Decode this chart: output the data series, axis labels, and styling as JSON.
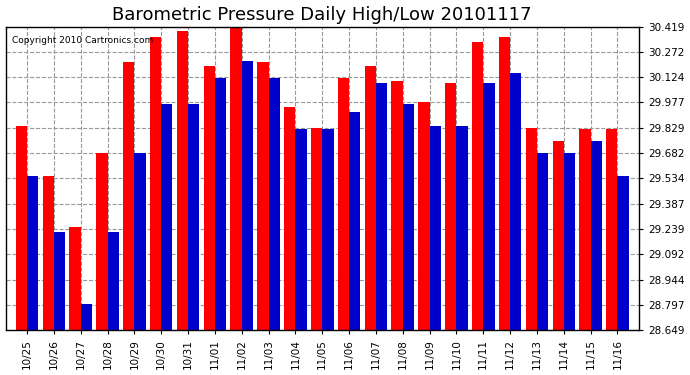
{
  "title": "Barometric Pressure Daily High/Low 20101117",
  "copyright": "Copyright 2010 Cartronics.com",
  "x_labels": [
    "10/25",
    "10/26",
    "10/27",
    "10/28",
    "10/29",
    "10/30",
    "10/31",
    "11/01",
    "11/02",
    "11/03",
    "11/04",
    "11/05",
    "11/06",
    "11/07",
    "11/08",
    "11/09",
    "11/10",
    "11/11",
    "11/12",
    "11/13",
    "11/14",
    "11/15",
    "11/16"
  ],
  "highs": [
    29.84,
    29.55,
    29.25,
    29.68,
    30.21,
    30.36,
    30.39,
    30.19,
    30.43,
    30.21,
    29.95,
    29.83,
    30.12,
    30.19,
    30.1,
    29.98,
    30.09,
    30.33,
    30.36,
    29.83,
    29.75,
    29.82,
    29.82
  ],
  "lows": [
    29.55,
    29.22,
    28.8,
    29.22,
    29.68,
    29.97,
    29.97,
    30.12,
    30.22,
    30.12,
    29.82,
    29.82,
    29.92,
    30.09,
    29.97,
    29.84,
    29.84,
    30.09,
    30.15,
    29.68,
    29.68,
    29.75,
    29.55
  ],
  "high_color": "#ff0000",
  "low_color": "#0000cc",
  "bg_color": "#ffffff",
  "grid_color": "#999999",
  "y_ticks": [
    28.649,
    28.797,
    28.944,
    29.092,
    29.239,
    29.387,
    29.534,
    29.682,
    29.829,
    29.977,
    30.124,
    30.272,
    30.419
  ],
  "y_min": 28.649,
  "y_max": 30.419,
  "title_fontsize": 13,
  "tick_fontsize": 7.5,
  "copyright_fontsize": 6.5
}
